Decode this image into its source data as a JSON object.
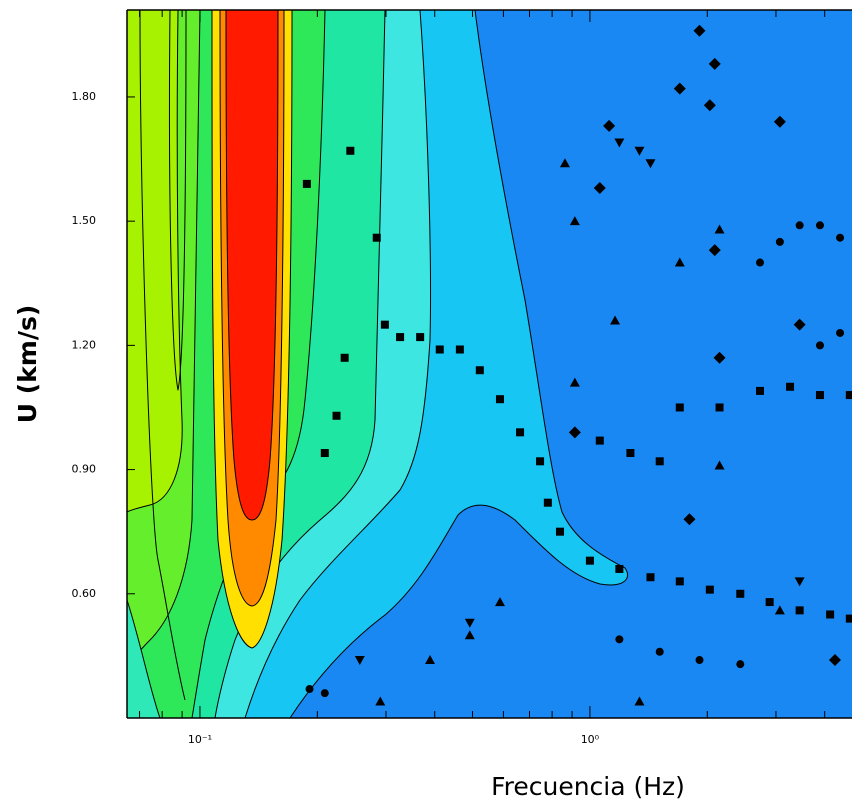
{
  "chart_data": {
    "type": "contour-scatter",
    "xlabel": "Frecuencia (Hz)",
    "ylabel": "U (km/s)",
    "xscale": "log",
    "xlim": [
      0.065,
      4.7
    ],
    "ylim": [
      0.3,
      2.01
    ],
    "xticks": [
      {
        "value": 0.1,
        "label": "10⁻¹"
      },
      {
        "value": 1,
        "label": "10⁰"
      }
    ],
    "xminorticks": [
      0.07,
      0.08,
      0.09,
      0.2,
      0.3,
      0.4,
      0.5,
      0.6,
      0.7,
      0.8,
      0.9,
      2,
      3,
      4
    ],
    "yticks": [
      {
        "value": 0.6,
        "label": "0.60"
      },
      {
        "value": 0.9,
        "label": "0.90"
      },
      {
        "value": 1.2,
        "label": "1.20"
      },
      {
        "value": 1.5,
        "label": "1.50"
      },
      {
        "value": 1.8,
        "label": "1.80"
      }
    ],
    "series": [
      {
        "marker": "square",
        "color": "#000000",
        "x": [
          0.188,
          0.243,
          0.284,
          0.235,
          0.224,
          0.209,
          0.298,
          0.326,
          0.367,
          0.412,
          0.464,
          0.522,
          0.588,
          0.662,
          0.745,
          0.78,
          0.838,
          1.0,
          1.19,
          1.43,
          1.7,
          2.03,
          2.43,
          2.89,
          3.45,
          4.13,
          4.64,
          1.7,
          2.15,
          2.73,
          3.26,
          3.89,
          4.64,
          1.06,
          1.27,
          1.51
        ],
        "y": [
          1.59,
          1.67,
          1.46,
          1.17,
          1.03,
          0.94,
          1.25,
          1.22,
          1.22,
          1.19,
          1.19,
          1.14,
          1.07,
          0.99,
          0.92,
          0.82,
          0.75,
          0.68,
          0.66,
          0.64,
          0.63,
          0.61,
          0.6,
          0.58,
          0.56,
          0.55,
          0.54,
          1.05,
          1.05,
          1.09,
          1.1,
          1.08,
          1.08,
          0.97,
          0.94,
          0.92
        ]
      },
      {
        "marker": "circle",
        "color": "#000000",
        "x": [
          0.191,
          0.209,
          3.07,
          3.45,
          3.89,
          4.38,
          2.73,
          3.89,
          4.38,
          1.19,
          1.51,
          1.91,
          2.43
        ],
        "y": [
          0.37,
          0.36,
          1.45,
          1.49,
          1.49,
          1.46,
          1.4,
          1.2,
          1.23,
          0.49,
          0.46,
          0.44,
          0.43
        ]
      },
      {
        "marker": "diamond",
        "color": "#000000",
        "x": [
          1.91,
          2.09,
          1.7,
          2.03,
          1.12,
          3.07,
          1.06,
          2.09,
          3.45,
          2.15,
          0.915,
          1.8,
          4.25
        ],
        "y": [
          1.96,
          1.88,
          1.82,
          1.78,
          1.73,
          1.74,
          1.58,
          1.43,
          1.25,
          1.17,
          0.99,
          0.78,
          0.44
        ]
      },
      {
        "marker": "triangle",
        "color": "#000000",
        "x": [
          0.863,
          0.915,
          1.7,
          2.15,
          1.16,
          0.915,
          2.15,
          0.588,
          0.492,
          0.389,
          0.29,
          1.34,
          3.07
        ],
        "y": [
          1.64,
          1.5,
          1.4,
          1.48,
          1.26,
          1.11,
          0.91,
          0.58,
          0.5,
          0.44,
          0.34,
          0.34,
          0.56
        ]
      },
      {
        "marker": "triangle-down",
        "color": "#000000",
        "x": [
          1.19,
          1.34,
          1.43,
          3.45,
          0.492,
          0.257
        ],
        "y": [
          1.69,
          1.67,
          1.64,
          0.63,
          0.53,
          0.44
        ]
      }
    ]
  }
}
